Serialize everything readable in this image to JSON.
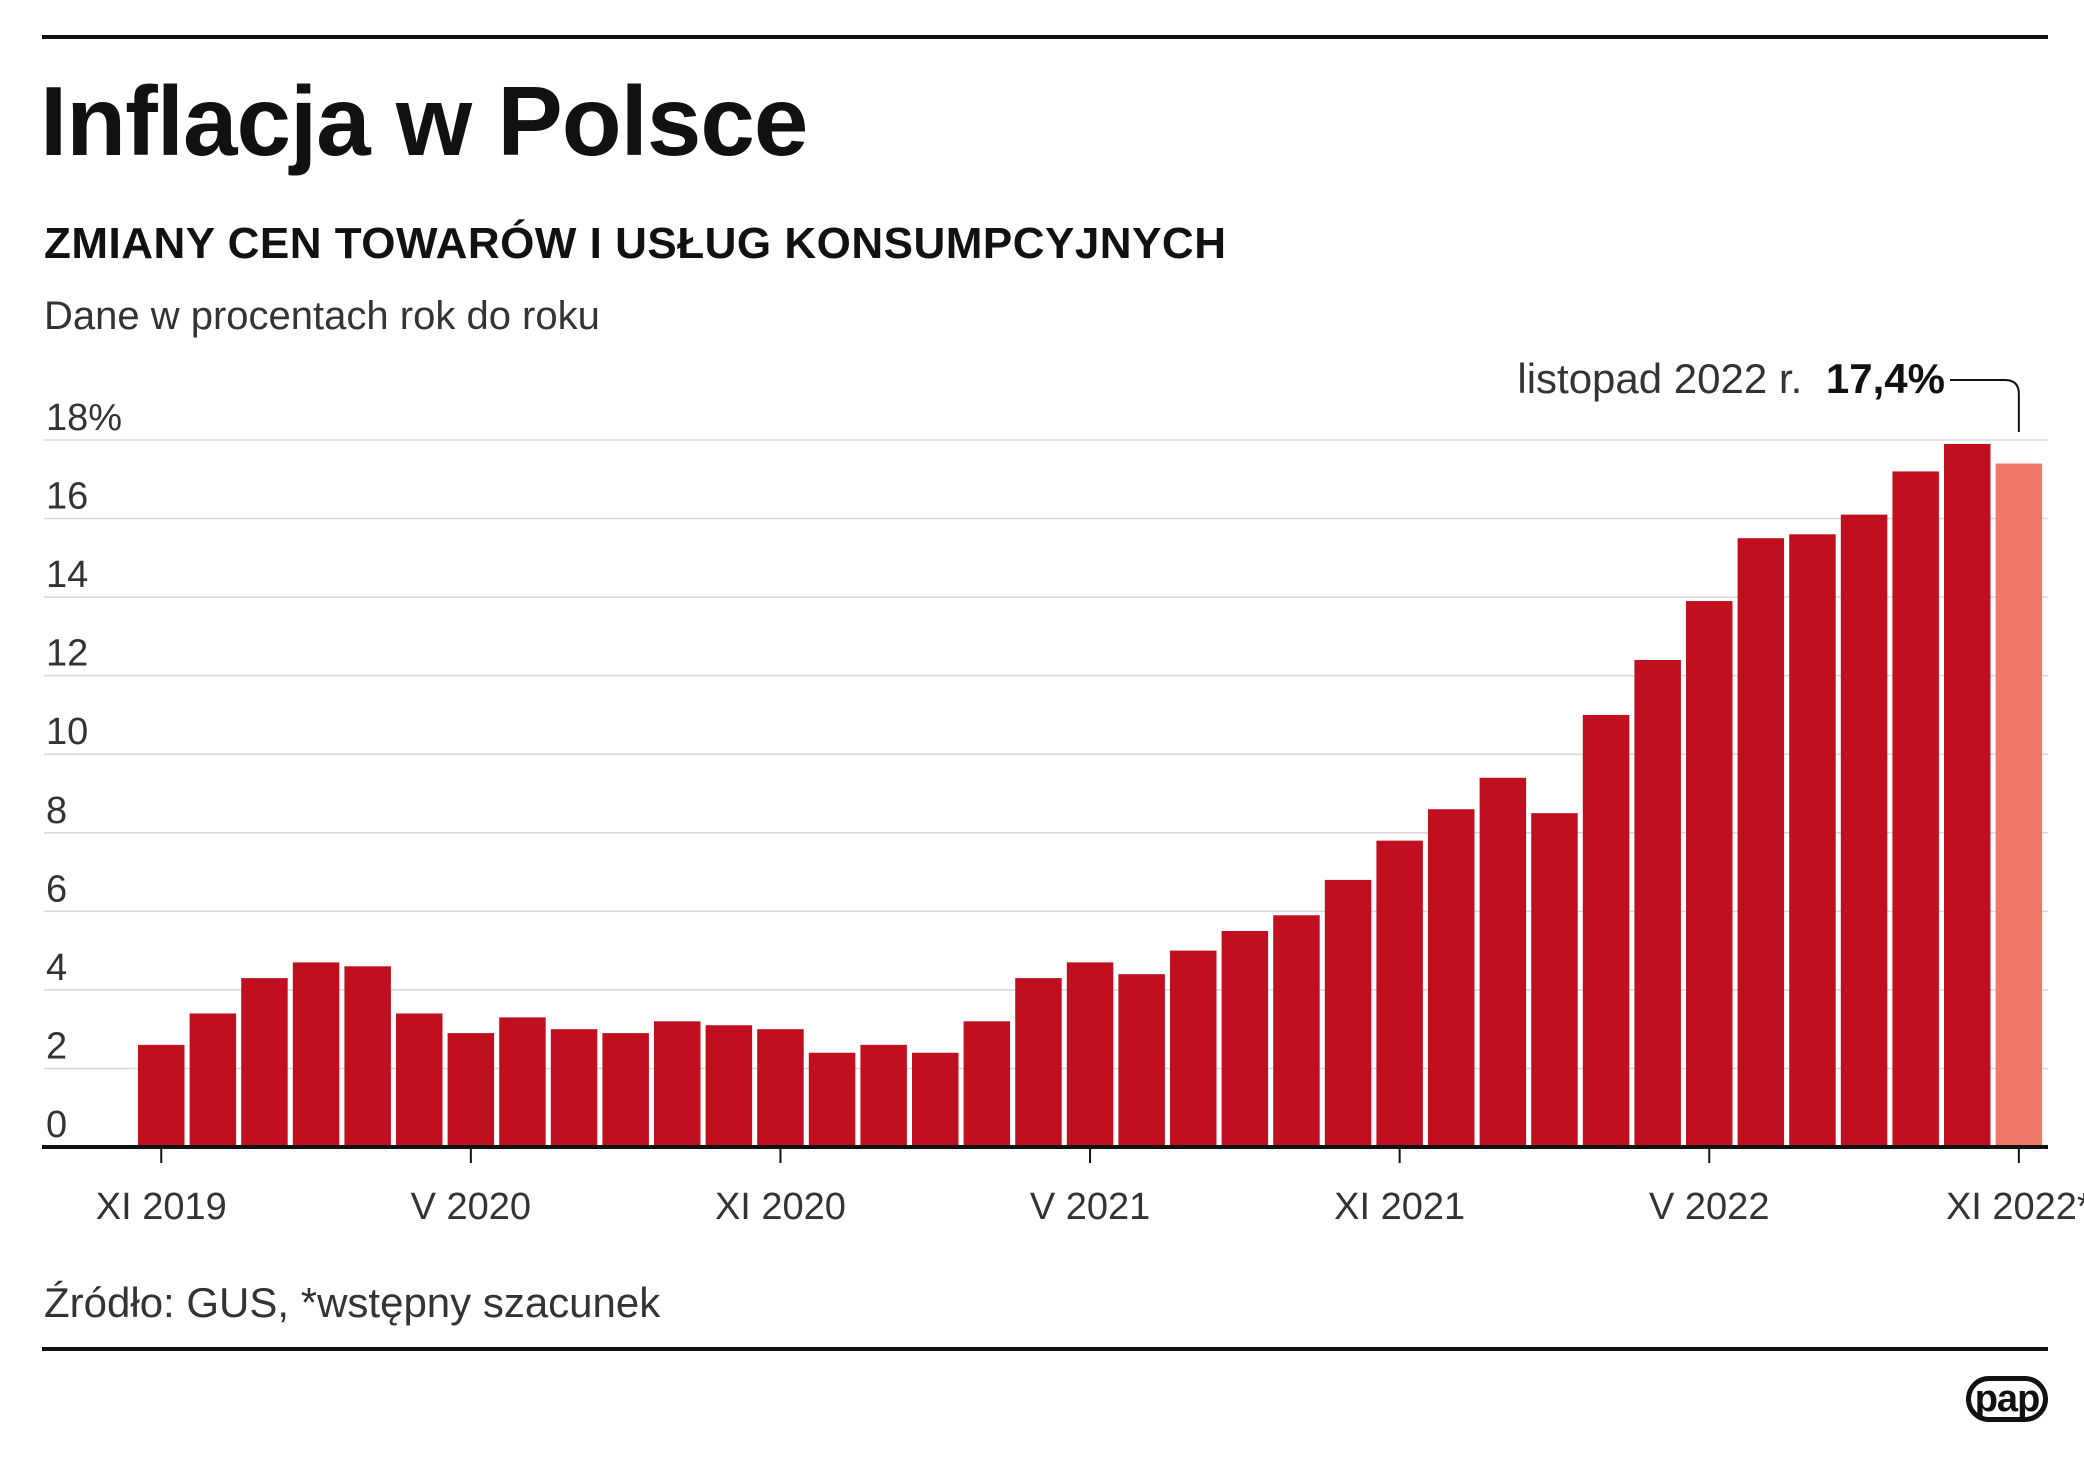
{
  "title": "Inflacja w Polsce",
  "subtitle": "ZMIANY CEN TOWARÓW I USŁUG KONSUMPCYJNYCH",
  "unit_note": "Dane w procentach rok do roku",
  "source": "Źródło: GUS, *wstępny szacunek",
  "logo": "pap",
  "colors": {
    "bar": "#c01020",
    "bar_highlight": "#ef7868",
    "grid": "#d8d8d8",
    "axis": "#111111"
  },
  "chart_data": {
    "type": "bar",
    "title": "Inflacja w Polsce",
    "subtitle": "ZMIANY CEN TOWARÓW I USŁUG KONSUMPCYJNYCH",
    "ylabel": "Dane w procentach rok do roku",
    "ylim": [
      0,
      18
    ],
    "y_ticks": [
      "0",
      "2",
      "4",
      "6",
      "8",
      "10",
      "12",
      "14",
      "16",
      "18%"
    ],
    "y_tick_values": [
      0,
      2,
      4,
      6,
      8,
      10,
      12,
      14,
      16,
      18
    ],
    "grid": true,
    "categories": [
      "XI 2019",
      "XII 2019",
      "I 2020",
      "II 2020",
      "III 2020",
      "IV 2020",
      "V 2020",
      "VI 2020",
      "VII 2020",
      "VIII 2020",
      "IX 2020",
      "X 2020",
      "XI 2020",
      "XII 2020",
      "I 2021",
      "II 2021",
      "III 2021",
      "IV 2021",
      "V 2021",
      "VI 2021",
      "VII 2021",
      "VIII 2021",
      "IX 2021",
      "X 2021",
      "XI 2021",
      "XII 2021",
      "I 2022",
      "II 2022",
      "III 2022",
      "IV 2022",
      "V 2022",
      "VI 2022",
      "VII 2022",
      "VIII 2022",
      "IX 2022",
      "X 2022",
      "XI 2022"
    ],
    "values": [
      2.6,
      3.4,
      4.3,
      4.7,
      4.6,
      3.4,
      2.9,
      3.3,
      3.0,
      2.9,
      3.2,
      3.1,
      3.0,
      2.4,
      2.6,
      2.4,
      3.2,
      4.3,
      4.7,
      4.4,
      5.0,
      5.5,
      5.9,
      6.8,
      7.8,
      8.6,
      9.4,
      8.5,
      11.0,
      12.4,
      13.9,
      15.5,
      15.6,
      16.1,
      17.2,
      17.9,
      17.4
    ],
    "highlight_index": 36,
    "x_tick_labels": [
      "XI 2019",
      "V 2020",
      "XI 2020",
      "V 2021",
      "XI 2021",
      "V 2022",
      "XI 2022*"
    ],
    "x_tick_indices": [
      0,
      6,
      12,
      18,
      24,
      30,
      36
    ],
    "annotation": {
      "label": "listopad 2022 r.",
      "value": "17,4%",
      "index": 36
    }
  }
}
